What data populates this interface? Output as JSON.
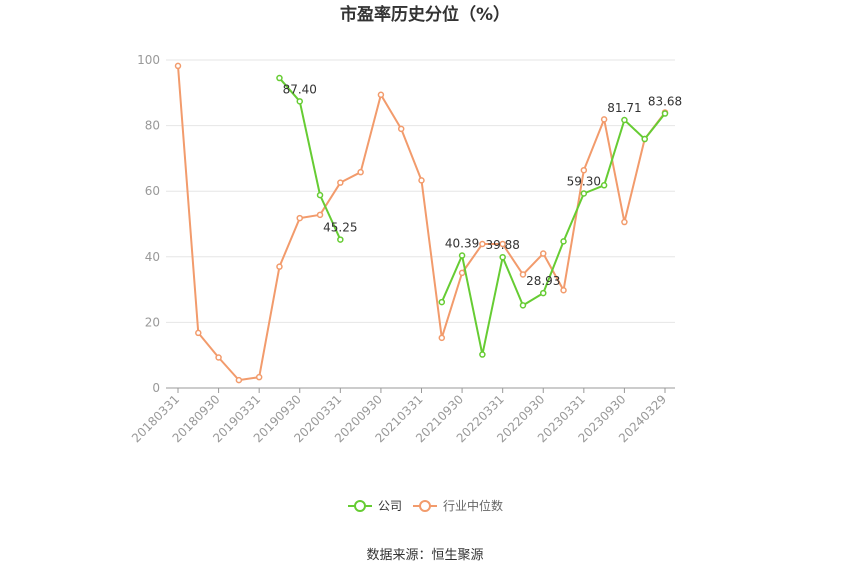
{
  "chart_data": {
    "type": "line",
    "title": "市盈率历史分位（%）",
    "xlabel": "",
    "ylabel": "",
    "ylim": [
      0,
      100
    ],
    "y_ticks": [
      0,
      20,
      40,
      60,
      80,
      100
    ],
    "grid": true,
    "legend_position": "bottom",
    "categories": [
      "20180331",
      "20180630",
      "20180930",
      "20181231",
      "20190331",
      "20190630",
      "20190930",
      "20191231",
      "20200331",
      "20200630",
      "20200930",
      "20201231",
      "20210331",
      "20210630",
      "20210930",
      "20211231",
      "20220331",
      "20220630",
      "20220930",
      "20221231",
      "20230331",
      "20230630",
      "20230930",
      "20231231",
      "20240329"
    ],
    "x_tick_labels": [
      "20180331",
      "20180930",
      "20190331",
      "20190930",
      "20200331",
      "20200930",
      "20210331",
      "20210930",
      "20220331",
      "20220930",
      "20230331",
      "20230930",
      "20240329"
    ],
    "series": [
      {
        "name": "公司",
        "color": "#66cc33",
        "values": [
          null,
          null,
          null,
          null,
          null,
          94.5,
          87.4,
          58.8,
          45.25,
          null,
          null,
          null,
          null,
          26.2,
          40.39,
          10.2,
          39.88,
          25.2,
          28.93,
          44.7,
          59.3,
          61.8,
          81.71,
          75.9,
          83.68
        ]
      },
      {
        "name": "行业中位数",
        "color": "#f29b6c",
        "values": [
          98.2,
          16.8,
          9.3,
          2.4,
          3.3,
          37.0,
          51.8,
          52.8,
          62.6,
          65.8,
          89.4,
          79.0,
          63.3,
          15.3,
          35.1,
          43.9,
          43.9,
          34.6,
          41.0,
          29.8,
          66.4,
          81.9,
          50.6,
          75.9,
          84.0
        ]
      }
    ],
    "data_labels": [
      {
        "series": 0,
        "index": 6,
        "text": "87.40"
      },
      {
        "series": 0,
        "index": 8,
        "text": "45.25"
      },
      {
        "series": 0,
        "index": 14,
        "text": "40.39"
      },
      {
        "series": 0,
        "index": 16,
        "text": "39.88"
      },
      {
        "series": 0,
        "index": 18,
        "text": "28.93"
      },
      {
        "series": 0,
        "index": 20,
        "text": "59.30"
      },
      {
        "series": 0,
        "index": 22,
        "text": "81.71"
      },
      {
        "series": 0,
        "index": 24,
        "text": "83.68"
      }
    ]
  },
  "source": "数据来源：恒生聚源"
}
